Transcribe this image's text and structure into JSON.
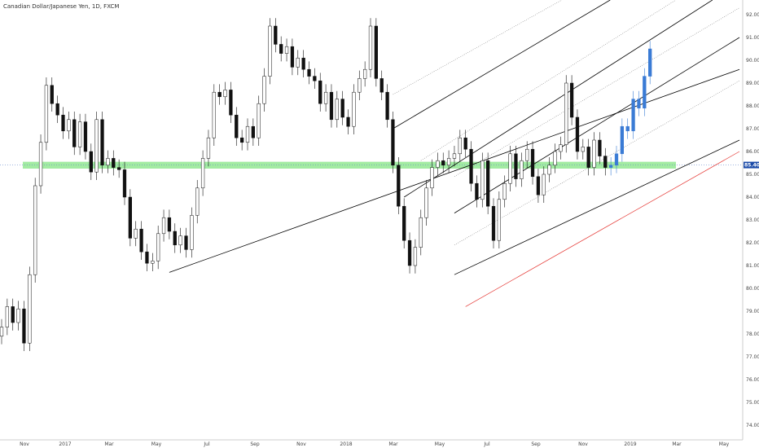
{
  "header": {
    "title": "Canadian Dollar/Japanese Yen, 1D, FXCM"
  },
  "chart_data": {
    "type": "candlestick",
    "title": "Canadian Dollar/Japanese Yen, 1D, FXCM",
    "symbol": "CADJPY",
    "timeframe": "1D",
    "source": "FXCM",
    "x_ticks": [
      "Nov",
      "2017",
      "Mar",
      "May",
      "Jul",
      "Sep",
      "Nov",
      "2018",
      "Mar",
      "May",
      "Jul",
      "Sep",
      "Nov",
      "2019",
      "Mar",
      "May"
    ],
    "y_ticks": [
      "92.000",
      "91.000",
      "90.000",
      "89.000",
      "88.000",
      "87.000",
      "86.000",
      "85.000",
      "84.000",
      "83.000",
      "82.000",
      "81.000",
      "80.000",
      "79.000",
      "78.000",
      "77.000",
      "76.000",
      "75.000",
      "74.000"
    ],
    "ylim": [
      74.0,
      92.0
    ],
    "x_index_range": [
      0,
      132
    ],
    "current_price": {
      "label": "85.408",
      "value": 85.408,
      "color": "#1a4aa8"
    },
    "support_zone": {
      "low": 85.25,
      "high": 85.55,
      "color": "#7be37b"
    },
    "colors": {
      "candle_up": "#ffffff",
      "candle_down": "#111111",
      "projection": "#3a7bd5",
      "channel": "#000000",
      "channel_dotted": "#888888",
      "warning_line": "#e53935"
    },
    "closes": [
      78.3,
      79.2,
      78.5,
      79.1,
      77.6,
      80.6,
      84.5,
      86.4,
      88.9,
      88.1,
      87.6,
      86.9,
      87.4,
      86.2,
      87.3,
      86.0,
      85.1,
      87.4,
      85.4,
      85.7,
      85.3,
      85.2,
      84.0,
      82.2,
      82.6,
      81.6,
      81.1,
      81.2,
      82.4,
      83.1,
      82.5,
      81.9,
      82.3,
      81.7,
      83.2,
      84.4,
      85.7,
      86.6,
      88.6,
      88.4,
      88.7,
      87.6,
      86.6,
      86.4,
      87.1,
      86.6,
      88.1,
      89.3,
      91.5,
      90.7,
      90.3,
      90.6,
      89.7,
      90.1,
      89.6,
      89.3,
      89.1,
      88.1,
      88.6,
      87.4,
      88.3,
      87.5,
      87.1,
      88.6,
      89.2,
      89.6,
      91.5,
      89.2,
      88.6,
      87.4,
      85.4,
      83.6,
      82.1,
      81.0,
      81.8,
      83.1,
      84.4,
      85.3,
      85.6,
      85.4,
      85.7,
      85.9,
      86.6,
      86.1,
      84.6,
      83.9,
      85.6,
      83.6,
      82.1,
      83.9,
      84.6,
      85.9,
      84.8,
      85.6,
      86.1,
      84.9,
      84.1,
      85.0,
      85.4,
      86.0,
      86.3,
      89.0,
      87.5,
      86.0,
      86.2,
      85.3,
      86.5,
      85.8,
      85.3,
      85.4,
      85.9,
      87.1,
      86.9,
      88.3,
      87.9,
      89.3,
      90.5
    ],
    "projection_from_index": 109,
    "channels": [
      {
        "name": "",
        "from": [
          30,
          80.7
        ],
        "to": [
          132,
          89.6
        ],
        "style": "solid"
      },
      {
        "name": "",
        "from": [
          81,
          80.6
        ],
        "to": [
          132,
          86.5
        ],
        "style": "solid"
      },
      {
        "name": "",
        "from": [
          81,
          83.3
        ],
        "to": [
          132,
          91.0
        ],
        "style": "solid"
      },
      {
        "name": "",
        "from": [
          72,
          84.0
        ],
        "to": [
          132,
          93.4
        ],
        "style": "solid"
      },
      {
        "name": "",
        "from": [
          70,
          87.0
        ],
        "to": [
          132,
          96.0
        ],
        "style": "solid"
      },
      {
        "name": "",
        "from": [
          83,
          79.2
        ],
        "to": [
          132,
          86.0
        ],
        "style": "warning"
      },
      {
        "name": "",
        "from": [
          70,
          88.5
        ],
        "to": [
          132,
          97.0
        ],
        "style": "dotted"
      },
      {
        "name": "",
        "from": [
          75,
          85.6
        ],
        "to": [
          132,
          94.4
        ],
        "style": "dotted"
      },
      {
        "name": "",
        "from": [
          81,
          81.9
        ],
        "to": [
          132,
          89.1
        ],
        "style": "dotted"
      },
      {
        "name": "",
        "from": [
          81,
          84.9
        ],
        "to": [
          132,
          92.3
        ],
        "style": "dotted"
      }
    ],
    "grid": false,
    "legend": "none"
  }
}
